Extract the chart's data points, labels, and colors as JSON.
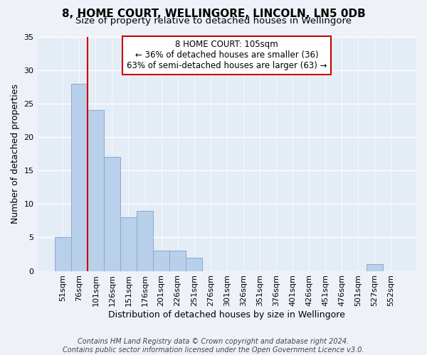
{
  "title": "8, HOME COURT, WELLINGORE, LINCOLN, LN5 0DB",
  "subtitle": "Size of property relative to detached houses in Wellingore",
  "xlabel": "Distribution of detached houses by size in Wellingore",
  "ylabel": "Number of detached properties",
  "bar_labels": [
    "51sqm",
    "76sqm",
    "101sqm",
    "126sqm",
    "151sqm",
    "176sqm",
    "201sqm",
    "226sqm",
    "251sqm",
    "276sqm",
    "301sqm",
    "326sqm",
    "351sqm",
    "376sqm",
    "401sqm",
    "426sqm",
    "451sqm",
    "476sqm",
    "501sqm",
    "527sqm",
    "552sqm"
  ],
  "bar_values": [
    5,
    28,
    24,
    17,
    8,
    9,
    3,
    3,
    2,
    0,
    0,
    0,
    0,
    0,
    0,
    0,
    0,
    0,
    0,
    1,
    0
  ],
  "bar_color": "#b8d0ea",
  "bar_edge_color": "#88aacc",
  "vline_color": "#cc0000",
  "annotation_title": "8 HOME COURT: 105sqm",
  "annotation_line1": "← 36% of detached houses are smaller (36)",
  "annotation_line2": "63% of semi-detached houses are larger (63) →",
  "annotation_box_color": "#cc0000",
  "ylim": [
    0,
    35
  ],
  "yticks": [
    0,
    5,
    10,
    15,
    20,
    25,
    30,
    35
  ],
  "footer1": "Contains HM Land Registry data © Crown copyright and database right 2024.",
  "footer2": "Contains public sector information licensed under the Open Government Licence v3.0.",
  "bg_color": "#eef2f8",
  "plot_bg_color": "#e4ecf6",
  "grid_color": "#ffffff",
  "title_fontsize": 11,
  "subtitle_fontsize": 9.5,
  "xlabel_fontsize": 9,
  "ylabel_fontsize": 9,
  "tick_fontsize": 8,
  "annotation_fontsize": 8.5,
  "footer_fontsize": 7
}
